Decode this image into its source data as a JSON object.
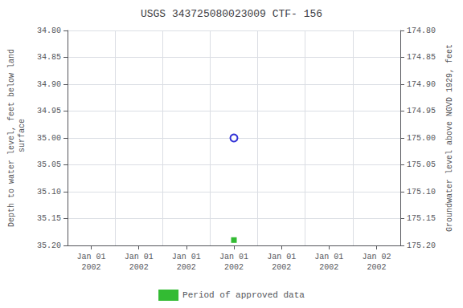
{
  "chart_data": {
    "type": "scatter",
    "title": "USGS 343725080023009 CTF- 156",
    "ylabel": "Depth to water level, feet below land\n surface",
    "y2label": "Groundwater level above NGVD 1929, feet",
    "categories": [
      "Jan 01\n2002",
      "Jan 01\n2002",
      "Jan 01\n2002",
      "Jan 01\n2002",
      "Jan 01\n2002",
      "Jan 01\n2002",
      "Jan 02\n2002"
    ],
    "series": [
      {
        "color": "#0000cc",
        "marker": "hollow_circle",
        "values": [
          null,
          null,
          null,
          35.0,
          null,
          null,
          null
        ]
      },
      {
        "name": "Period of approved data",
        "color": "#00aa00",
        "marker": "square",
        "values": [
          null,
          null,
          null,
          35.19,
          null,
          null,
          null
        ]
      }
    ],
    "ylim": [
      35.2,
      34.8
    ],
    "yticks": [
      {
        "value": 34.8,
        "label": "34.80"
      },
      {
        "value": 34.85,
        "label": "34.85"
      },
      {
        "value": 34.9,
        "label": "34.90"
      },
      {
        "value": 34.95,
        "label": "34.95"
      },
      {
        "value": 35.0,
        "label": "35.00"
      },
      {
        "value": 35.05,
        "label": "35.05"
      },
      {
        "value": 35.1,
        "label": "35.10"
      },
      {
        "value": 35.15,
        "label": "35.15"
      },
      {
        "value": 35.2,
        "label": "35.20"
      }
    ],
    "y2lim": [
      175.2,
      174.8
    ],
    "y2ticks": [
      {
        "value": 175.2,
        "label": "175.20"
      },
      {
        "value": 175.15,
        "label": "175.15"
      },
      {
        "value": 175.1,
        "label": "175.10"
      },
      {
        "value": 175.05,
        "label": "175.05"
      },
      {
        "value": 175.0,
        "label": "175.00"
      },
      {
        "value": 174.95,
        "label": "174.95"
      },
      {
        "value": 174.9,
        "label": "174.90"
      },
      {
        "value": 174.85,
        "label": "174.85"
      },
      {
        "value": 174.8,
        "label": "174.80"
      }
    ],
    "grid": true,
    "legend": "bottom"
  }
}
